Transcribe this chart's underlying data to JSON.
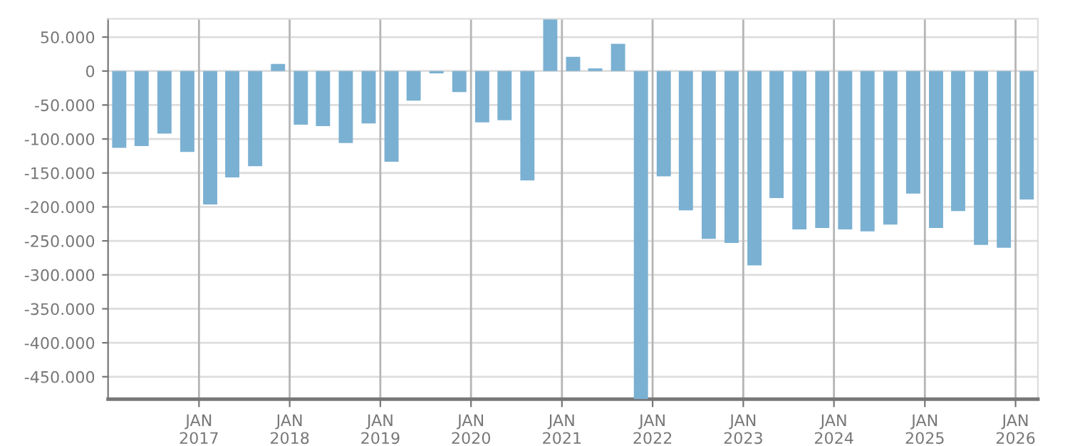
{
  "chart_data": {
    "type": "bar",
    "color": "#7ab0d2",
    "x": [
      "2016-02-15",
      "2016-05-15",
      "2016-08-15",
      "2016-11-15",
      "2017-02-15",
      "2017-05-15",
      "2017-08-15",
      "2017-11-15",
      "2018-02-15",
      "2018-05-15",
      "2018-08-15",
      "2018-11-15",
      "2019-02-15",
      "2019-05-15",
      "2019-08-15",
      "2019-11-15",
      "2020-02-15",
      "2020-05-15",
      "2020-08-15",
      "2020-11-15",
      "2021-02-15",
      "2021-05-15",
      "2021-08-15",
      "2021-11-15",
      "2022-02-15",
      "2022-05-15",
      "2022-08-15",
      "2022-11-15",
      "2023-02-15",
      "2023-05-15",
      "2023-08-15",
      "2023-11-15",
      "2024-02-15",
      "2024-05-15",
      "2024-08-15",
      "2024-11-15",
      "2025-02-15",
      "2025-05-15",
      "2025-08-15",
      "2025-11-15",
      "2026-02-15"
    ],
    "values": [
      -113000,
      -110500,
      -92000,
      -119000,
      -196500,
      -156500,
      -140000,
      10500,
      -79000,
      -81000,
      -106000,
      -77000,
      -133500,
      -43500,
      -3500,
      -31000,
      -75500,
      -72500,
      -161000,
      76000,
      21000,
      4000,
      40000,
      -483000,
      -155000,
      -205000,
      -247000,
      -253000,
      -286000,
      -187000,
      -233000,
      -231000,
      -233000,
      -236000,
      -226000,
      -180500,
      -231000,
      -206000,
      -256000,
      -260000,
      -189000
    ],
    "xlim": [
      "2016-01-01",
      "2026-04-01"
    ],
    "xticks": [
      {
        "value": "2017-01-01",
        "label": "JAN\n2017"
      },
      {
        "value": "2018-01-01",
        "label": "JAN\n2018"
      },
      {
        "value": "2019-01-01",
        "label": "JAN\n2019"
      },
      {
        "value": "2020-01-01",
        "label": "JAN\n2020"
      },
      {
        "value": "2021-01-01",
        "label": "JAN\n2021"
      },
      {
        "value": "2022-01-01",
        "label": "JAN\n2022"
      },
      {
        "value": "2023-01-01",
        "label": "JAN\n2023"
      },
      {
        "value": "2024-01-01",
        "label": "JAN\n2024"
      },
      {
        "value": "2025-01-01",
        "label": "JAN\n2025"
      },
      {
        "value": "2026-01-01",
        "label": "JAN\n2026"
      }
    ],
    "ylim": [
      -483000,
      77000
    ],
    "yticks": [
      {
        "value": 50000,
        "label": "50.000"
      },
      0,
      {
        "value": -50000,
        "label": "-50.000"
      },
      {
        "value": -100000,
        "label": "-100.000"
      },
      {
        "value": -150000,
        "label": "-150.000"
      },
      {
        "value": -200000,
        "label": "-200.000"
      },
      {
        "value": -250000,
        "label": "-250.000"
      },
      {
        "value": -300000,
        "label": "-300.000"
      },
      {
        "value": -350000,
        "label": "-350.000"
      },
      {
        "value": -400000,
        "label": "-400.000"
      },
      {
        "value": -450000,
        "label": "-450.000"
      }
    ],
    "grid": true
  }
}
